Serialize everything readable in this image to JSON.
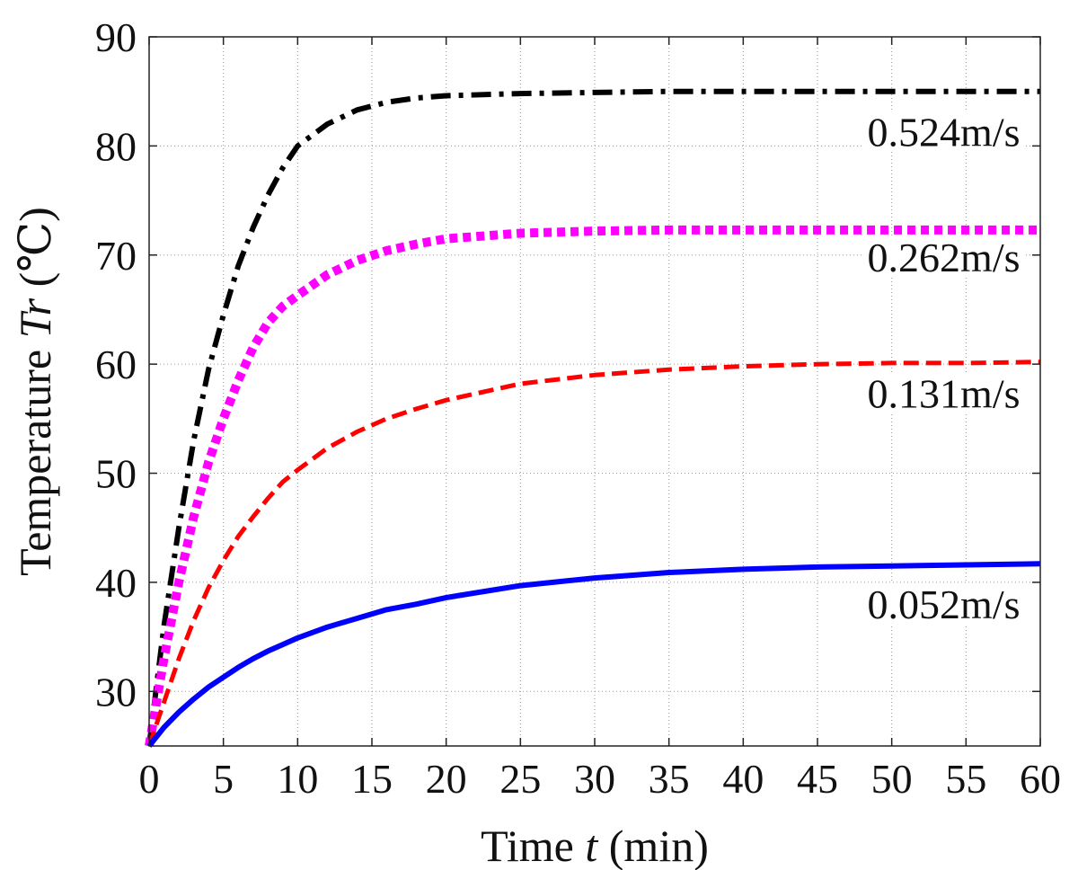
{
  "chart_data": {
    "type": "line",
    "xlabel": {
      "prefix": "Time ",
      "var": "t",
      "suffix": " (min)"
    },
    "ylabel": {
      "prefix": "Temperature ",
      "var": "Tr",
      "suffix": " (℃)"
    },
    "xlim": [
      0,
      60
    ],
    "ylim": [
      25,
      90
    ],
    "xticks": [
      0,
      5,
      10,
      15,
      20,
      25,
      30,
      35,
      40,
      45,
      50,
      55,
      60
    ],
    "xtick_labels": [
      "0",
      "5",
      "10",
      "15",
      "20",
      "25",
      "30",
      "35",
      "40",
      "45",
      "50",
      "55",
      "60"
    ],
    "yticks": [
      30,
      40,
      50,
      60,
      70,
      80,
      90
    ],
    "ytick_labels": [
      "30",
      "40",
      "50",
      "60",
      "70",
      "80",
      "90"
    ],
    "grid": true,
    "legend": "none",
    "series": [
      {
        "name": "0.524m/s",
        "color": "#000000",
        "style": "dash-dot",
        "x": [
          0,
          1,
          2,
          3,
          4,
          5,
          6,
          7,
          8,
          9,
          10,
          12,
          14,
          16,
          18,
          20,
          25,
          30,
          35,
          40,
          45,
          50,
          55,
          60
        ],
        "y": [
          25,
          36,
          45,
          53,
          59.5,
          64.5,
          69,
          72.5,
          75.5,
          78,
          80,
          82,
          83.3,
          84,
          84.4,
          84.6,
          84.8,
          84.9,
          85,
          85,
          85,
          85,
          85,
          85
        ]
      },
      {
        "name": "0.262m/s",
        "color": "#ff00ff",
        "style": "dotted",
        "x": [
          0,
          1,
          2,
          3,
          4,
          5,
          6,
          7,
          8,
          9,
          10,
          12,
          14,
          16,
          18,
          20,
          25,
          30,
          35,
          40,
          45,
          50,
          55,
          60
        ],
        "y": [
          25,
          33,
          40,
          46,
          51,
          55,
          58.5,
          61.5,
          63.8,
          65.3,
          66.3,
          68.2,
          69.5,
          70.4,
          71,
          71.5,
          72,
          72.2,
          72.3,
          72.3,
          72.3,
          72.3,
          72.3,
          72.3
        ]
      },
      {
        "name": "0.131m/s",
        "color": "#ff0000",
        "style": "dashed",
        "x": [
          0,
          1,
          2,
          3,
          4,
          5,
          6,
          7,
          8,
          9,
          10,
          12,
          14,
          16,
          18,
          20,
          25,
          30,
          35,
          40,
          45,
          50,
          55,
          60
        ],
        "y": [
          25,
          29,
          33,
          36.5,
          39.5,
          42,
          44.2,
          46,
          47.7,
          49.2,
          50.3,
          52.3,
          53.8,
          55,
          55.9,
          56.7,
          58.2,
          59,
          59.5,
          59.8,
          60,
          60.1,
          60.1,
          60.2
        ]
      },
      {
        "name": "0.052m/s",
        "color": "#0000ff",
        "style": "solid",
        "x": [
          0,
          1,
          2,
          3,
          4,
          5,
          6,
          7,
          8,
          9,
          10,
          12,
          14,
          16,
          18,
          20,
          25,
          30,
          35,
          40,
          45,
          50,
          55,
          60
        ],
        "y": [
          25,
          26.7,
          28.1,
          29.3,
          30.4,
          31.3,
          32.2,
          33,
          33.7,
          34.3,
          34.9,
          35.9,
          36.7,
          37.5,
          38,
          38.6,
          39.7,
          40.4,
          40.9,
          41.2,
          41.4,
          41.5,
          41.6,
          41.7
        ]
      }
    ],
    "annotations": [
      {
        "text": "0.524m/s",
        "x": 53.5,
        "y": 80
      },
      {
        "text": "0.262m/s",
        "x": 53.5,
        "y": 68.5
      },
      {
        "text": "0.131m/s",
        "x": 53.5,
        "y": 56
      },
      {
        "text": "0.052m/s",
        "x": 53.5,
        "y": 36.7
      }
    ]
  }
}
